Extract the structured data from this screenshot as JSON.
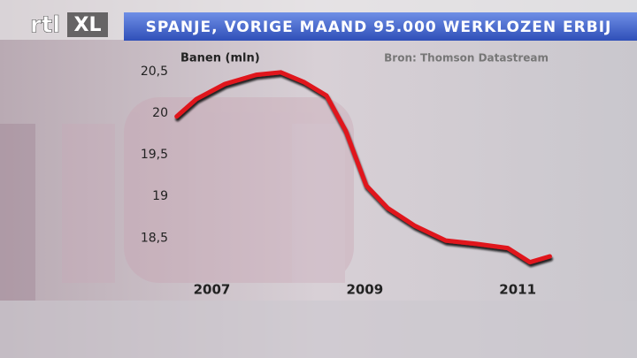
{
  "logo": [
    "rtl",
    "XL"
  ],
  "chart_data": {
    "type": "line",
    "title": "SPANJE, VORIGE MAAND 95.000 WERKLOZEN ERBIJ",
    "y_label": "Banen (mln)",
    "source": "Bron: Thomson Datastream",
    "x": [
      2006.54,
      2006.8,
      2007.17,
      2007.58,
      2007.9,
      2008.21,
      2008.5,
      2008.75,
      2009.02,
      2009.3,
      2009.65,
      2010.06,
      2010.46,
      2010.87,
      2011.16,
      2011.42
    ],
    "series": [
      {
        "color": "#e0141e",
        "values": [
          19.96,
          20.17,
          20.35,
          20.46,
          20.49,
          20.37,
          20.21,
          19.79,
          19.13,
          18.86,
          18.65,
          18.47,
          18.43,
          18.38,
          18.21,
          18.28
        ]
      }
    ],
    "xlim": [
      2006.3,
      2011.6
    ],
    "xticks": [
      2007,
      2009,
      2011
    ],
    "ylim": [
      18.1,
      20.7
    ],
    "yticks": [
      {
        "value": 18.5,
        "label": "18,5"
      },
      19,
      {
        "value": 19.5,
        "label": "19,5"
      },
      20,
      {
        "value": 20.5,
        "label": "20,5"
      }
    ],
    "grid": false
  }
}
